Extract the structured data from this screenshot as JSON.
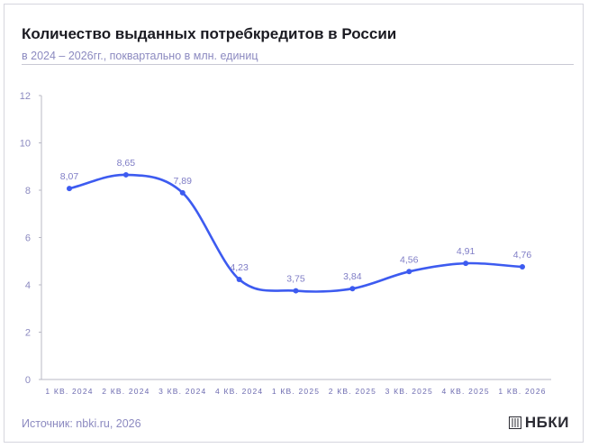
{
  "header": {
    "title": "Количество выданных потребкредитов в России",
    "subtitle": "в 2024 – 2026гг., поквартально в млн. единиц"
  },
  "footer": {
    "source": "Источник: nbki.ru, 2026",
    "logo_text": "НБКИ"
  },
  "colors": {
    "line": "#3d5bf0",
    "axis": "#b8b8c4",
    "text": "#8c8ac0"
  },
  "chart_data": {
    "type": "line",
    "title": "Количество выданных потребкредитов в России",
    "xlabel": "",
    "ylabel": "",
    "ylim": [
      0,
      12
    ],
    "yticks": [
      0,
      2,
      4,
      6,
      8,
      10,
      12
    ],
    "grid": false,
    "categories": [
      "1 КВ. 2024",
      "2 КВ. 2024",
      "3 КВ. 2024",
      "4 КВ. 2024",
      "1 КВ. 2025",
      "2 КВ. 2025",
      "3 КВ. 2025",
      "4 КВ. 2025",
      "1 КВ. 2026"
    ],
    "series": [
      {
        "name": "Количество выданных потребкредитов",
        "values": [
          8.07,
          8.65,
          7.89,
          4.23,
          3.75,
          3.84,
          4.56,
          4.91,
          4.76
        ],
        "labels": [
          "8,07",
          "8,65",
          "7,89",
          "4,23",
          "3,75",
          "3,84",
          "4,56",
          "4,91",
          "4,76"
        ]
      }
    ]
  }
}
